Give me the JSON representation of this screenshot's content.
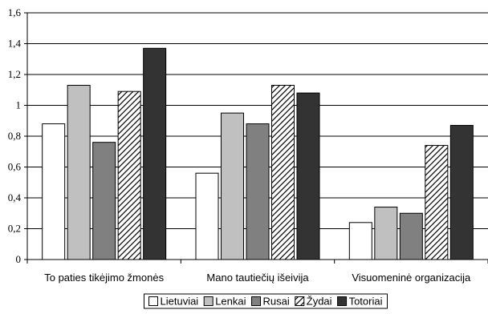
{
  "chart_data": {
    "type": "bar",
    "categories": [
      "To paties tikėjimo žmonės",
      "Mano tautiečių išeivija",
      "Visuomeninė organizacija"
    ],
    "series": [
      {
        "name": "Lietuviai",
        "values": [
          0.88,
          0.56,
          0.24
        ],
        "color": "#ffffff",
        "pattern": "solid"
      },
      {
        "name": "Lenkai",
        "values": [
          1.13,
          0.95,
          0.34
        ],
        "color": "#c0c0c0",
        "pattern": "solid"
      },
      {
        "name": "Rusai",
        "values": [
          0.76,
          0.88,
          0.3
        ],
        "color": "#808080",
        "pattern": "solid"
      },
      {
        "name": "Žydai",
        "values": [
          1.09,
          1.13,
          0.74
        ],
        "color": "#ffffff",
        "pattern": "diagonal-hatch"
      },
      {
        "name": "Totoriai",
        "values": [
          1.37,
          1.08,
          0.87
        ],
        "color": "#333333",
        "pattern": "solid"
      }
    ],
    "yticks": [
      "0",
      "0,2",
      "0,4",
      "0,6",
      "0,8",
      "1",
      "1,2",
      "1,4",
      "1,6"
    ],
    "ylim": [
      0,
      1.6
    ],
    "title": "",
    "xlabel": "",
    "ylabel": "",
    "grid": true,
    "legend_position": "bottom"
  }
}
